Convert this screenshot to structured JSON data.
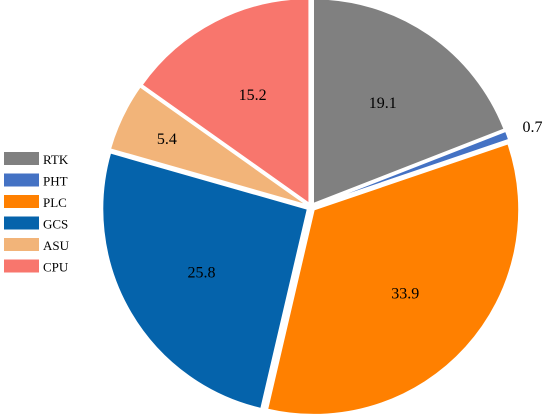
{
  "chart_data": {
    "type": "pie",
    "title": "",
    "legend_position": "left",
    "slices": [
      {
        "label": "RTK",
        "value": 19.1,
        "display": "19.1",
        "color": "#808080"
      },
      {
        "label": "PHT",
        "value": 0.7,
        "display": "0.7",
        "color": "#4472c4"
      },
      {
        "label": "PLC",
        "value": 33.9,
        "display": "33.9",
        "color": "#ff8000"
      },
      {
        "label": "GCS",
        "value": 25.8,
        "display": "25.8",
        "color": "#0563ab"
      },
      {
        "label": "ASU",
        "value": 5.4,
        "display": "5.4",
        "color": "#f2b479"
      },
      {
        "label": "CPU",
        "value": 15.2,
        "display": "15.2",
        "color": "#f8766d"
      }
    ]
  }
}
